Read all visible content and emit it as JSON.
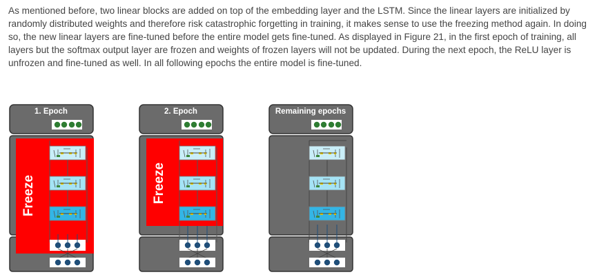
{
  "paragraph": "As mentioned before, two linear blocks are added on top of the embedding layer and the LSTM. Since the linear layers are initialized by randomly distributed weights and therefore risk catastrophic forgetting in training, it makes sense to use the freezing method again. In doing so, the new linear layers are fine-tuned before the entire model gets fine-tuned. As displayed in Figure 21, in the first epoch of training, all layers but the softmax output layer are frozen and weights of frozen layers will not be updated. During the next epoch, the ReLU layer is unfrozen and fine-tuned as well. In all following epochs the entire model is fine-tuned.",
  "figure": {
    "panels": [
      {
        "title": "1. Epoch",
        "freeze_label": "Freeze"
      },
      {
        "title": "2. Epoch",
        "freeze_label": "Freeze"
      },
      {
        "title": "Remaining epochs",
        "freeze_label": ""
      }
    ],
    "colors": {
      "panel_fill": "#6b6b6b",
      "panel_stroke": "#333333",
      "freeze_red": "#ff0000",
      "node_green": "#2e7d32",
      "node_blue": "#1f4e79",
      "block_light": "#c9eef8",
      "block_mid": "#a5e3f5",
      "block_dark": "#33b5e5"
    }
  }
}
